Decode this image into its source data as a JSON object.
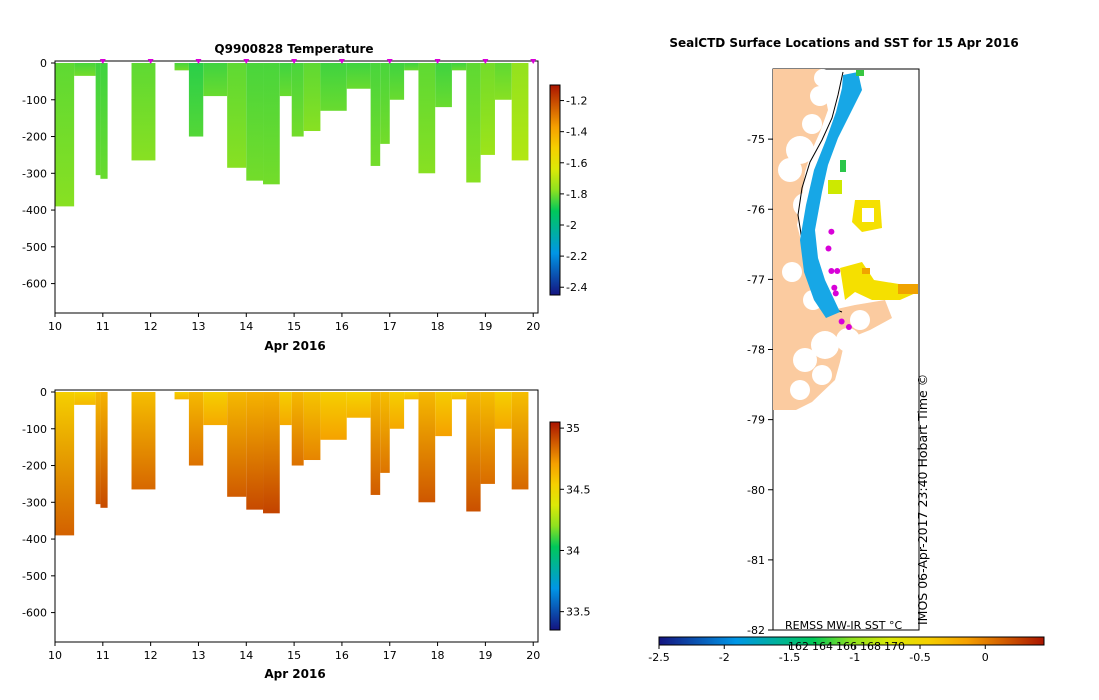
{
  "chart_data": [
    {
      "type": "heatmap",
      "title": "Q9900828  Temperature",
      "xlabel": "Apr 2016",
      "ylabel": "",
      "x_ticks": [
        "10",
        "11",
        "12",
        "13",
        "14",
        "15",
        "16",
        "17",
        "18",
        "19",
        "20"
      ],
      "y_ticks": [
        "0",
        "-100",
        "-200",
        "-300",
        "-400",
        "-500",
        "-600"
      ],
      "ylim": [
        -680,
        0
      ],
      "colorbar": {
        "ticks": [
          "-1.2",
          "-1.4",
          "-1.6",
          "-1.8",
          "-2",
          "-2.2",
          "-2.4"
        ],
        "range": [
          -2.45,
          -1.1
        ]
      },
      "profiles": [
        {
          "t": 10.0,
          "w": 0.4,
          "depth": 390,
          "value": -1.8
        },
        {
          "t": 10.4,
          "w": 0.45,
          "depth": 35,
          "value": -1.82
        },
        {
          "t": 10.85,
          "w": 0.1,
          "depth": 305,
          "value": -1.83
        },
        {
          "t": 10.95,
          "w": 0.15,
          "depth": 315,
          "value": -1.83
        },
        {
          "t": 11.6,
          "w": 0.5,
          "depth": 265,
          "value": -1.8
        },
        {
          "t": 12.5,
          "w": 0.3,
          "depth": 20,
          "value": -1.82
        },
        {
          "t": 12.8,
          "w": 0.3,
          "depth": 200,
          "value": -1.85
        },
        {
          "t": 13.1,
          "w": 0.5,
          "depth": 90,
          "value": -1.83
        },
        {
          "t": 13.6,
          "w": 0.4,
          "depth": 285,
          "value": -1.8
        },
        {
          "t": 14.0,
          "w": 0.35,
          "depth": 320,
          "value": -1.82
        },
        {
          "t": 14.35,
          "w": 0.35,
          "depth": 330,
          "value": -1.82
        },
        {
          "t": 14.7,
          "w": 0.25,
          "depth": 90,
          "value": -1.83
        },
        {
          "t": 14.95,
          "w": 0.25,
          "depth": 200,
          "value": -1.82
        },
        {
          "t": 15.2,
          "w": 0.35,
          "depth": 185,
          "value": -1.8
        },
        {
          "t": 15.55,
          "w": 0.55,
          "depth": 130,
          "value": -1.83
        },
        {
          "t": 16.1,
          "w": 0.5,
          "depth": 70,
          "value": -1.83
        },
        {
          "t": 16.6,
          "w": 0.2,
          "depth": 280,
          "value": -1.82
        },
        {
          "t": 16.8,
          "w": 0.2,
          "depth": 220,
          "value": -1.82
        },
        {
          "t": 17.0,
          "w": 0.3,
          "depth": 100,
          "value": -1.83
        },
        {
          "t": 17.3,
          "w": 0.3,
          "depth": 20,
          "value": -1.83
        },
        {
          "t": 17.6,
          "w": 0.35,
          "depth": 300,
          "value": -1.8
        },
        {
          "t": 17.95,
          "w": 0.35,
          "depth": 120,
          "value": -1.83
        },
        {
          "t": 18.3,
          "w": 0.3,
          "depth": 20,
          "value": -1.83
        },
        {
          "t": 18.6,
          "w": 0.3,
          "depth": 325,
          "value": -1.8
        },
        {
          "t": 18.9,
          "w": 0.3,
          "depth": 250,
          "value": -1.78
        },
        {
          "t": 19.2,
          "w": 0.35,
          "depth": 100,
          "value": -1.8
        },
        {
          "t": 19.55,
          "w": 0.35,
          "depth": 265,
          "value": -1.75
        }
      ],
      "markers_t": [
        11,
        12,
        13,
        14,
        15,
        16,
        17,
        18,
        19,
        20
      ]
    },
    {
      "type": "heatmap",
      "title": "",
      "xlabel": "Apr 2016",
      "ylabel": "",
      "x_ticks": [
        "10",
        "11",
        "12",
        "13",
        "14",
        "15",
        "16",
        "17",
        "18",
        "19",
        "20"
      ],
      "y_ticks": [
        "0",
        "-100",
        "-200",
        "-300",
        "-400",
        "-500",
        "-600"
      ],
      "ylim": [
        -680,
        0
      ],
      "colorbar": {
        "ticks": [
          "35",
          "34.5",
          "34",
          "33.5"
        ],
        "range": [
          33.35,
          35.05
        ]
      },
      "profiles": [
        {
          "t": 10.0,
          "w": 0.4,
          "depth": 390,
          "value": 34.62
        },
        {
          "t": 10.4,
          "w": 0.45,
          "depth": 35,
          "value": 34.6
        },
        {
          "t": 10.85,
          "w": 0.1,
          "depth": 305,
          "value": 34.7
        },
        {
          "t": 10.95,
          "w": 0.15,
          "depth": 315,
          "value": 34.72
        },
        {
          "t": 11.6,
          "w": 0.5,
          "depth": 265,
          "value": 34.68
        },
        {
          "t": 12.5,
          "w": 0.3,
          "depth": 20,
          "value": 34.62
        },
        {
          "t": 12.8,
          "w": 0.3,
          "depth": 200,
          "value": 34.7
        },
        {
          "t": 13.1,
          "w": 0.5,
          "depth": 90,
          "value": 34.62
        },
        {
          "t": 13.6,
          "w": 0.4,
          "depth": 285,
          "value": 34.7
        },
        {
          "t": 14.0,
          "w": 0.35,
          "depth": 320,
          "value": 34.72
        },
        {
          "t": 14.35,
          "w": 0.35,
          "depth": 330,
          "value": 34.73
        },
        {
          "t": 14.7,
          "w": 0.25,
          "depth": 90,
          "value": 34.62
        },
        {
          "t": 14.95,
          "w": 0.25,
          "depth": 200,
          "value": 34.7
        },
        {
          "t": 15.2,
          "w": 0.35,
          "depth": 185,
          "value": 34.66
        },
        {
          "t": 15.55,
          "w": 0.55,
          "depth": 130,
          "value": 34.62
        },
        {
          "t": 16.1,
          "w": 0.5,
          "depth": 70,
          "value": 34.6
        },
        {
          "t": 16.6,
          "w": 0.2,
          "depth": 280,
          "value": 34.7
        },
        {
          "t": 16.8,
          "w": 0.2,
          "depth": 220,
          "value": 34.68
        },
        {
          "t": 17.0,
          "w": 0.3,
          "depth": 100,
          "value": 34.62
        },
        {
          "t": 17.3,
          "w": 0.3,
          "depth": 20,
          "value": 34.6
        },
        {
          "t": 17.6,
          "w": 0.35,
          "depth": 300,
          "value": 34.7
        },
        {
          "t": 17.95,
          "w": 0.35,
          "depth": 120,
          "value": 34.63
        },
        {
          "t": 18.3,
          "w": 0.3,
          "depth": 20,
          "value": 34.6
        },
        {
          "t": 18.6,
          "w": 0.3,
          "depth": 325,
          "value": 34.7
        },
        {
          "t": 18.9,
          "w": 0.3,
          "depth": 250,
          "value": 34.68
        },
        {
          "t": 19.2,
          "w": 0.35,
          "depth": 100,
          "value": 34.62
        },
        {
          "t": 19.55,
          "w": 0.35,
          "depth": 265,
          "value": 34.68
        }
      ]
    },
    {
      "type": "scatter",
      "title": "SealCTD Surface Locations and SST for 15 Apr 2016",
      "y_ticks": [
        "-75",
        "-76",
        "-77",
        "-78",
        "-79",
        "-80",
        "-81",
        "-82"
      ],
      "ylim": [
        -82,
        -74
      ],
      "x_ticks_inner": [
        "162",
        "164",
        "166",
        "168",
        "170"
      ],
      "colorbar": {
        "label": "REMSS MW-IR SST °C",
        "ticks": [
          "-2.5",
          "-2",
          "-1.5",
          "-1",
          "-0.5",
          "0"
        ],
        "range": [
          -2.5,
          0.45
        ]
      },
      "surface_locations": [
        [
          0.38,
          0.32
        ],
        [
          0.4,
          0.36
        ],
        [
          0.42,
          0.39
        ],
        [
          0.47,
          0.45
        ],
        [
          0.52,
          0.46
        ],
        [
          0.4,
          0.29
        ],
        [
          0.44,
          0.36
        ],
        [
          0.43,
          0.4
        ]
      ],
      "watermark": "IMOS 06-Apr-2017 23:40 Hobart Time ©"
    }
  ]
}
